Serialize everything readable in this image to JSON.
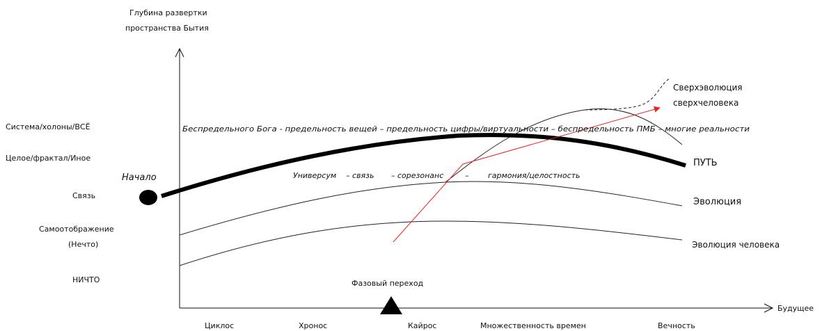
{
  "y_axis": {
    "title_line1": "Глубина развертки",
    "title_line2": "пространства Бытия",
    "levels": [
      "Система/холоны/ВСЁ",
      "Целое/фрактал/Иное",
      "Связь",
      "Самоотображение",
      "(Нечто)",
      "НИЧТО"
    ]
  },
  "x_axis": {
    "end_label": "Будущее",
    "stages": [
      "Циклос",
      "Хронос",
      "Кайрос",
      "Множественность времен",
      "Вечность"
    ]
  },
  "start_label": "Начало",
  "phase_transition_label": "Фазовый переход",
  "upper_caption": "Беспредельного Бога - предельность вещей – предельность цифры/виртуальности – беспредельность ПМБ – многие реальности",
  "lower_caption": {
    "universum": "Универсум",
    "svyaz": "– связь",
    "sorezonans": "– сорезонанс",
    "dash": "–",
    "garmonia": "гармония/целостность"
  },
  "curves": {
    "path": "ПУТЬ",
    "evolution": "Эволюция",
    "human_evolution": "Эволюция человека",
    "super_line1": "Сверхэволюция",
    "super_line2": "сверхчеловека"
  },
  "colors": {
    "path_line": "#000000",
    "curves": "#222222",
    "arrow": "#ee2222",
    "marker": "#000000"
  }
}
